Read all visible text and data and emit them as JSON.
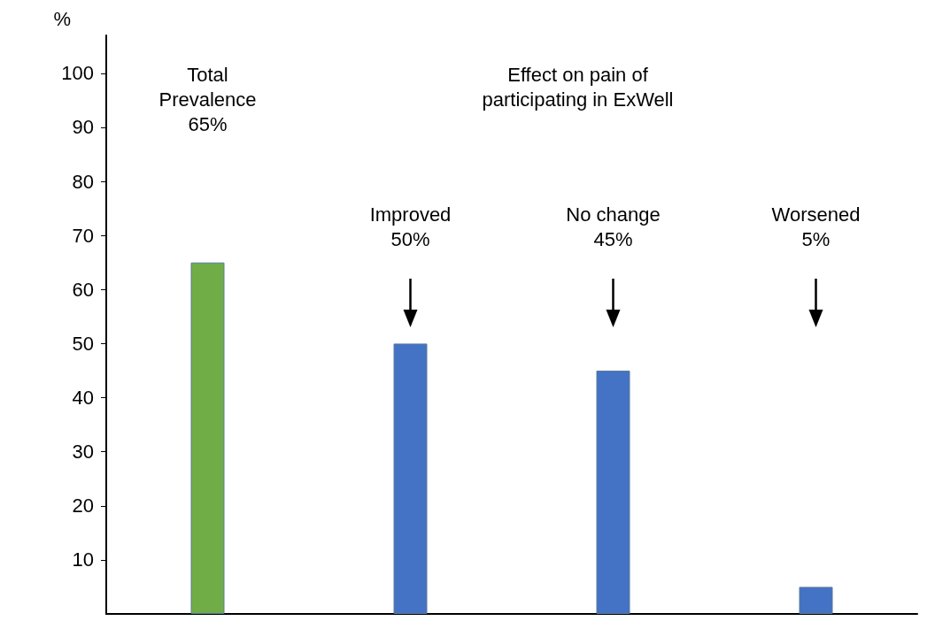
{
  "chart_data": {
    "type": "bar",
    "ylabel": "%",
    "categories": [
      null,
      null,
      null,
      null
    ],
    "values": [
      65,
      50,
      45,
      5
    ],
    "colors": [
      "#70ad47",
      "#4472c4",
      "#4472c4",
      "#4472c4"
    ],
    "ylim": [
      0,
      107
    ],
    "yticks": [
      10,
      20,
      30,
      40,
      50,
      60,
      70,
      80,
      90,
      100
    ],
    "grid": false,
    "annotations": [
      "Total\nPrevalence\n65%",
      "Effect on pain of\nparticipating in ExWell",
      "Improved\n50%",
      "No change\n45%",
      "Worsened\n5%"
    ]
  }
}
